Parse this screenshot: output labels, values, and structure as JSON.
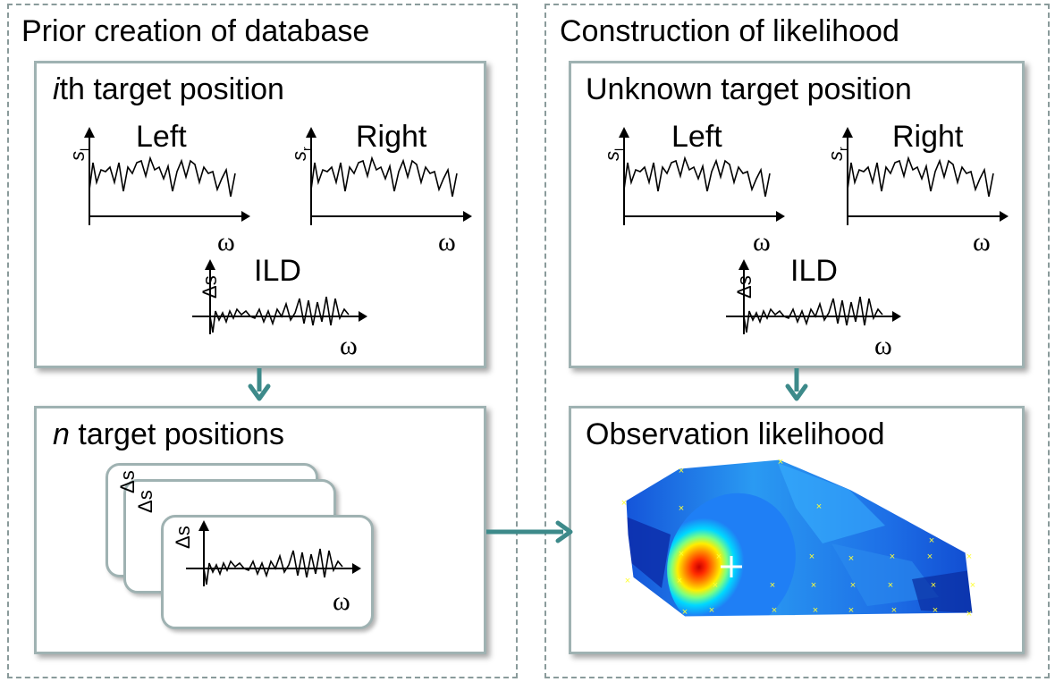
{
  "left_group": {
    "title": "Prior creation of database"
  },
  "right_group": {
    "title": "Construction of likelihood"
  },
  "ith_box": {
    "title_italic": "i",
    "title_rest": "th target position"
  },
  "unknown_box": {
    "title": "Unknown target position"
  },
  "n_box": {
    "title_italic": "n",
    "title_rest": " target positions"
  },
  "obs_box": {
    "title": "Observation likelihood"
  },
  "plots": {
    "left_label": "Left",
    "right_label": "Right",
    "ild_label": "ILD",
    "x_symbol": "ω",
    "sl_symbol": "s",
    "sl_sub": "l",
    "sr_symbol": "s",
    "sr_sub": "r",
    "ds_symbol": "Δs"
  },
  "colors": {
    "box_border": "#9fb2b2",
    "group_border": "#8a9b9b",
    "arrow": "#3d8a8a",
    "marker": "#ffff33"
  }
}
